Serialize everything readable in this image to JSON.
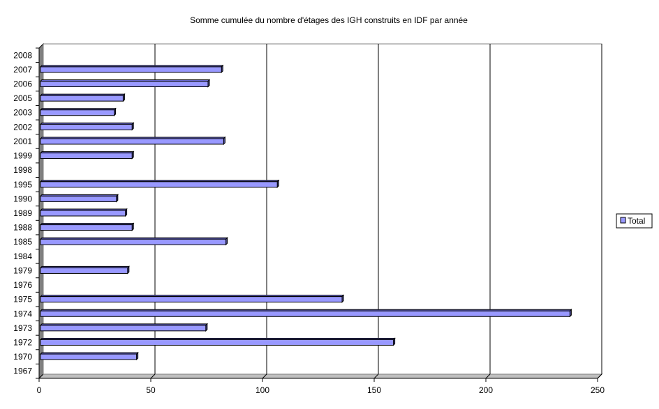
{
  "chart_data": {
    "type": "bar",
    "orientation": "horizontal",
    "title": "Somme cumulée du nombre d'étages des IGH construits en IDF par année",
    "xlabel": "",
    "ylabel": "",
    "xlim": [
      0,
      250
    ],
    "xticks": [
      0,
      50,
      100,
      150,
      200,
      250
    ],
    "grid": true,
    "legend_position": "right",
    "categories": [
      "2008",
      "2007",
      "2006",
      "2005",
      "2003",
      "2002",
      "2001",
      "1999",
      "1998",
      "1995",
      "1990",
      "1989",
      "1988",
      "1985",
      "1984",
      "1979",
      "1976",
      "1975",
      "1974",
      "1973",
      "1972",
      "1970",
      "1967"
    ],
    "series": [
      {
        "name": "Total",
        "color": "#9999ff",
        "values": [
          0,
          81,
          75,
          37,
          33,
          41,
          82,
          41,
          0,
          106,
          34,
          38,
          41,
          83,
          0,
          39,
          0,
          135,
          237,
          74,
          158,
          43,
          0
        ]
      }
    ]
  }
}
